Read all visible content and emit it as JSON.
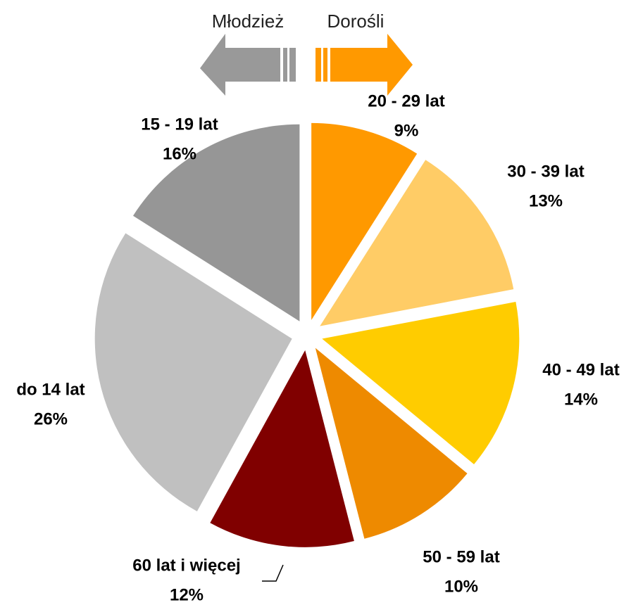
{
  "chart_data": {
    "type": "pie",
    "categories": [
      "20 - 29 lat",
      "30 - 39 lat",
      "40 - 49 lat",
      "50 - 59 lat",
      "60 lat i więcej",
      "do 14 lat",
      "15 - 19 lat"
    ],
    "values": [
      9,
      13,
      14,
      10,
      12,
      26,
      16
    ],
    "value_labels": [
      "9%",
      "13%",
      "14%",
      "10%",
      "12%",
      "26%",
      "16%"
    ],
    "colors": [
      "#ff9900",
      "#ffcc66",
      "#ffcc00",
      "#ee8a00",
      "#800000",
      "#c0c0c0",
      "#969696"
    ],
    "annotations": [
      "Młodzież",
      "Dorośli"
    ]
  }
}
